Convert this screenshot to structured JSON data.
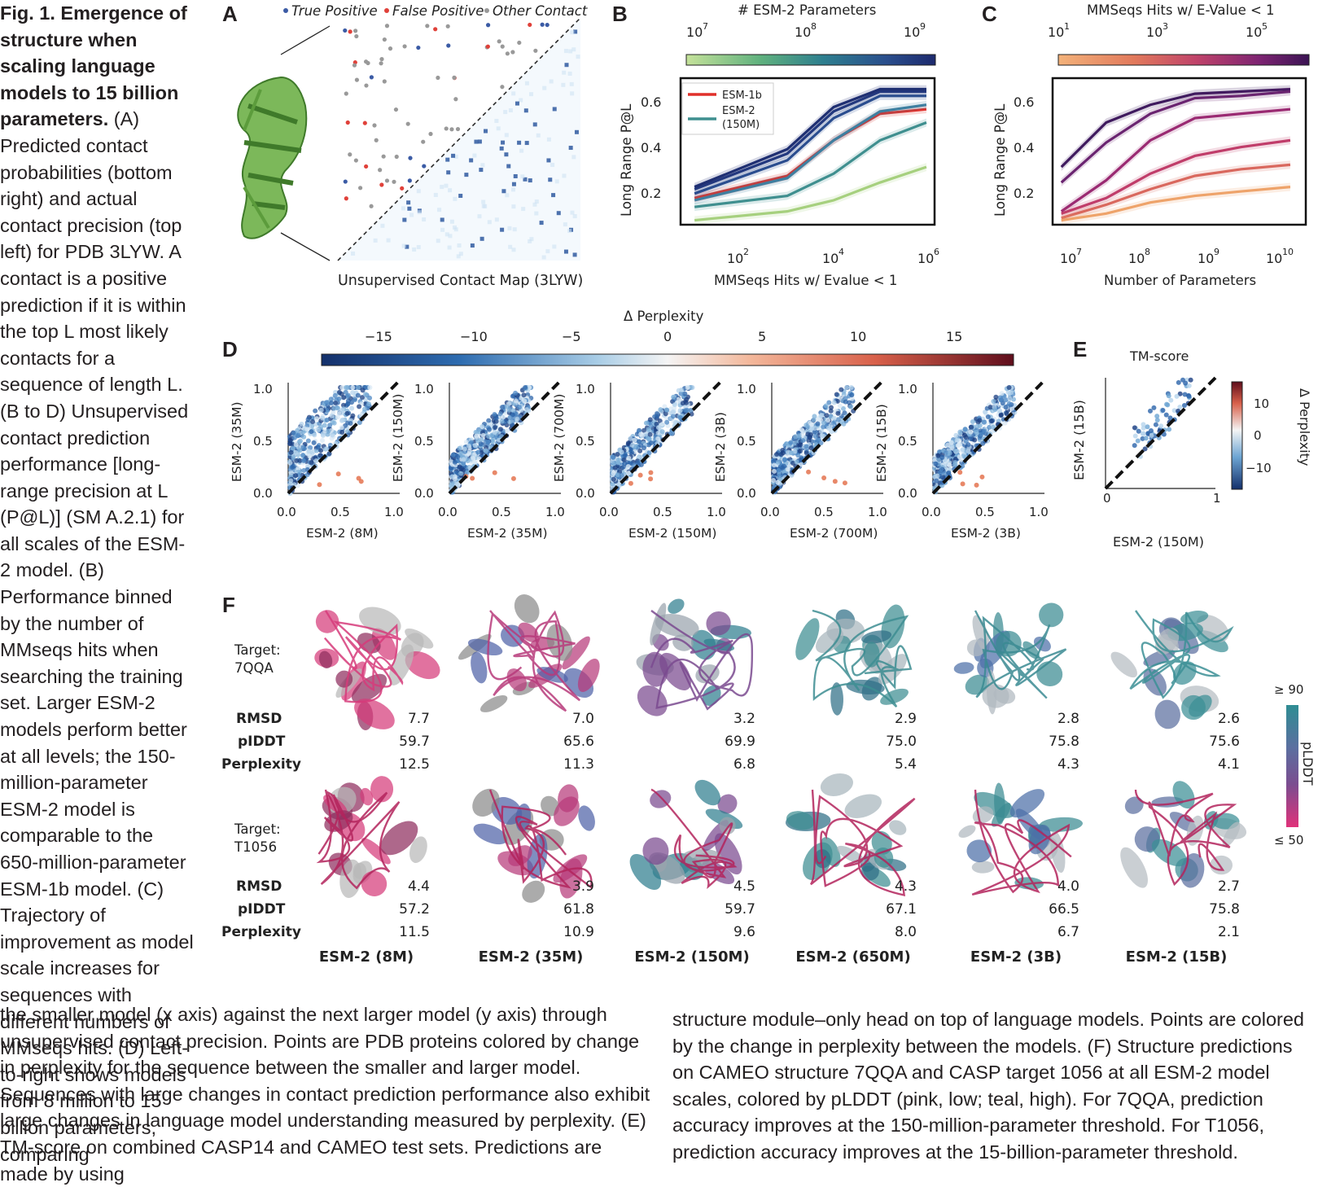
{
  "caption": {
    "title": "Fig. 1. Emergence of structure when scaling language models to 15 billion parameters.",
    "side_paragraphs": [
      "(A) Predicted contact probabilities (bottom right) and actual contact precision (top left) for PDB 3LYW. A contact is a positive prediction if it is within the top L most likely contacts for a sequence of length L. (B to D) Unsupervised contact prediction performance [long-range precision at L (P@L)] (SM A.2.1) for all scales of the ESM-2 model. (B) Performance binned by the number of MMseqs hits when searching the training set. Larger ESM-2 models perform better at all levels; the 150-million-parameter ESM-2 model is comparable to the 650-million-parameter ESM-1b model. (C) Trajectory of improvement as model scale increases for sequences with different numbers of MMseqs hits. (D) Left-to-right shows models from 8 million to 15 billion parameters, comparing"
    ],
    "bottom_left": "the smaller model (x axis) against the next larger model (y axis) through unsupervised contact precision. Points are PDB proteins colored by change in perplexity for the sequence between the smaller and larger model. Sequences with large changes in contact prediction performance also exhibit large changes in language model understanding measured by perplexity. (E) TM-score on combined CASP14 and CAMEO test sets. Predictions are made by using",
    "bottom_right": "structure module–only head on top of language models. Points are colored by the change in perplexity between the models. (F) Structure predictions on CAMEO structure 7QQA and CASP target 1056 at all ESM-2 model scales, colored by pLDDT (pink, low; teal, high). For 7QQA, prediction accuracy improves at the 150-million-parameter threshold. For T1056, prediction accuracy improves at the 15-billion-parameter threshold."
  },
  "panels": {
    "A": {
      "letter": "A",
      "legend": [
        "True Positive",
        "False Positive",
        "Other Contact"
      ],
      "legend_colors": [
        "#3b5ba5",
        "#e0413a",
        "#999999"
      ],
      "caption": "Unsupervised Contact Map (3LYW)"
    },
    "B": {
      "letter": "B",
      "colorbar_title": "# ESM-2 Parameters",
      "colorbar_ticks": [
        "10",
        "10",
        "10"
      ],
      "colorbar_exps": [
        "7",
        "8",
        "9"
      ],
      "ylabel": "Long Range P@L",
      "xlabel": "MMSeqs Hits w/ Evalue < 1",
      "yticks": [
        "0.2",
        "0.4",
        "0.6"
      ],
      "xticks": [
        "10",
        "10",
        "10"
      ],
      "xtick_exps": [
        "2",
        "4",
        "6"
      ],
      "legend": [
        "ESM-1b",
        "ESM-2",
        "(150M)"
      ]
    },
    "C": {
      "letter": "C",
      "colorbar_title": "MMSeqs Hits w/ E-Value < 1",
      "colorbar_ticks": [
        "10",
        "10",
        "10"
      ],
      "colorbar_exps": [
        "1",
        "3",
        "5"
      ],
      "ylabel": "Long Range P@L",
      "xlabel": "Number of Parameters",
      "yticks": [
        "0.2",
        "0.4",
        "0.6"
      ],
      "xticks": [
        "10",
        "10",
        "10",
        "10"
      ],
      "xtick_exps": [
        "7",
        "8",
        "9",
        "10"
      ]
    },
    "D": {
      "letter": "D",
      "colorbar_title": "Δ Perplexity",
      "colorbar_ticks": [
        "−15",
        "−10",
        "−5",
        "0",
        "5",
        "10",
        "15"
      ],
      "ticks": [
        "0.0",
        "0.5",
        "1.0"
      ],
      "xlabels": [
        "ESM-2 (8M)",
        "ESM-2 (35M)",
        "ESM-2 (150M)",
        "ESM-2 (700M)",
        "ESM-2 (3B)"
      ],
      "ylabels": [
        "ESM-2 (35M)",
        "ESM-2 (150M)",
        "ESM-2 (700M)",
        "ESM-2 (3B)",
        "ESM-2 (15B)"
      ]
    },
    "E": {
      "letter": "E",
      "title": "TM-score",
      "xlabel": "ESM-2 (150M)",
      "ylabel": "ESM-2 (15B)",
      "ticks": [
        "0",
        "1"
      ],
      "colorbar_title": "Δ Perplexity",
      "colorbar_ticks": [
        "10",
        "0",
        "−10"
      ]
    },
    "F": {
      "letter": "F",
      "row_labels": [
        "RMSD",
        "pIDDT",
        "Perplexity"
      ],
      "targets": [
        {
          "label": "Target:",
          "id": "7QQA",
          "values": [
            [
              "7.7",
              "59.7",
              "12.5"
            ],
            [
              "7.0",
              "65.6",
              "11.3"
            ],
            [
              "3.2",
              "69.9",
              "6.8"
            ],
            [
              "2.9",
              "75.0",
              "5.4"
            ],
            [
              "2.8",
              "75.8",
              "4.3"
            ],
            [
              "2.6",
              "75.6",
              "4.1"
            ]
          ]
        },
        {
          "label": "Target:",
          "id": "T1056",
          "values": [
            [
              "4.4",
              "57.2",
              "11.5"
            ],
            [
              "3.9",
              "61.8",
              "10.9"
            ],
            [
              "4.5",
              "59.7",
              "9.6"
            ],
            [
              "4.3",
              "67.1",
              "8.0"
            ],
            [
              "4.0",
              "66.5",
              "6.7"
            ],
            [
              "2.7",
              "75.8",
              "2.1"
            ]
          ]
        }
      ],
      "models": [
        "ESM-2 (8M)",
        "ESM-2 (35M)",
        "ESM-2 (150M)",
        "ESM-2 (650M)",
        "ESM-2 (3B)",
        "ESM-2 (15B)"
      ],
      "colorbar_top": "≥ 90",
      "colorbar_bottom": "≤ 50",
      "colorbar_title": "pLDDT"
    }
  },
  "chart_data": [
    {
      "panel": "B",
      "type": "line",
      "x": [
        10,
        1000,
        10000,
        100000,
        1000000
      ],
      "xscale": "log",
      "xlim": [
        5,
        1500000
      ],
      "ylim": [
        0.04,
        0.7
      ],
      "series": [
        {
          "name": "ESM-1b",
          "color": "#e0302a",
          "values": [
            0.16,
            0.26,
            0.42,
            0.54,
            0.56
          ]
        },
        {
          "name": "ESM-2 (150M)",
          "color": "#3f8f8f",
          "values": [
            0.12,
            0.17,
            0.27,
            0.42,
            0.5
          ]
        },
        {
          "color": "#a6d07e",
          "values": [
            0.06,
            0.1,
            0.15,
            0.23,
            0.3
          ]
        },
        {
          "color": "#3e7fa0",
          "values": [
            0.15,
            0.25,
            0.42,
            0.55,
            0.58
          ]
        },
        {
          "color": "#2a4d8f",
          "values": [
            0.18,
            0.33,
            0.52,
            0.62,
            0.62
          ]
        },
        {
          "color": "#243b80",
          "values": [
            0.2,
            0.36,
            0.55,
            0.64,
            0.64
          ]
        },
        {
          "color": "#1f2f72",
          "values": [
            0.21,
            0.38,
            0.57,
            0.65,
            0.65
          ]
        }
      ],
      "colorbar": {
        "colors": [
          "#c5e29a",
          "#5fb17e",
          "#2e7f8f",
          "#2a4f8d",
          "#1d2a6e"
        ],
        "log_min": 6.9,
        "log_max": 9.2
      }
    },
    {
      "panel": "C",
      "type": "line",
      "x": [
        8000000,
        35000000,
        150000000,
        650000000,
        3000000000,
        15000000000
      ],
      "xscale": "log",
      "xlim": [
        6000000,
        25000000000
      ],
      "ylim": [
        0.04,
        0.7
      ],
      "series": [
        {
          "color": "#3f1a5e",
          "values": [
            0.3,
            0.5,
            0.58,
            0.63,
            0.64,
            0.65
          ]
        },
        {
          "color": "#6a2470",
          "values": [
            0.23,
            0.41,
            0.54,
            0.61,
            0.62,
            0.64
          ]
        },
        {
          "color": "#9a2a72",
          "values": [
            0.1,
            0.24,
            0.42,
            0.52,
            0.54,
            0.56
          ]
        },
        {
          "color": "#c03d6a",
          "values": [
            0.09,
            0.16,
            0.27,
            0.35,
            0.39,
            0.42
          ]
        },
        {
          "color": "#d9685e",
          "values": [
            0.07,
            0.13,
            0.2,
            0.26,
            0.29,
            0.31
          ]
        },
        {
          "color": "#eea36a",
          "values": [
            0.06,
            0.09,
            0.14,
            0.17,
            0.19,
            0.21
          ]
        }
      ],
      "colorbar": {
        "colors": [
          "#f3b27a",
          "#e27a5c",
          "#c0436a",
          "#7e2472",
          "#3b1454"
        ],
        "log_min": 1,
        "log_max": 6.3
      }
    }
  ]
}
